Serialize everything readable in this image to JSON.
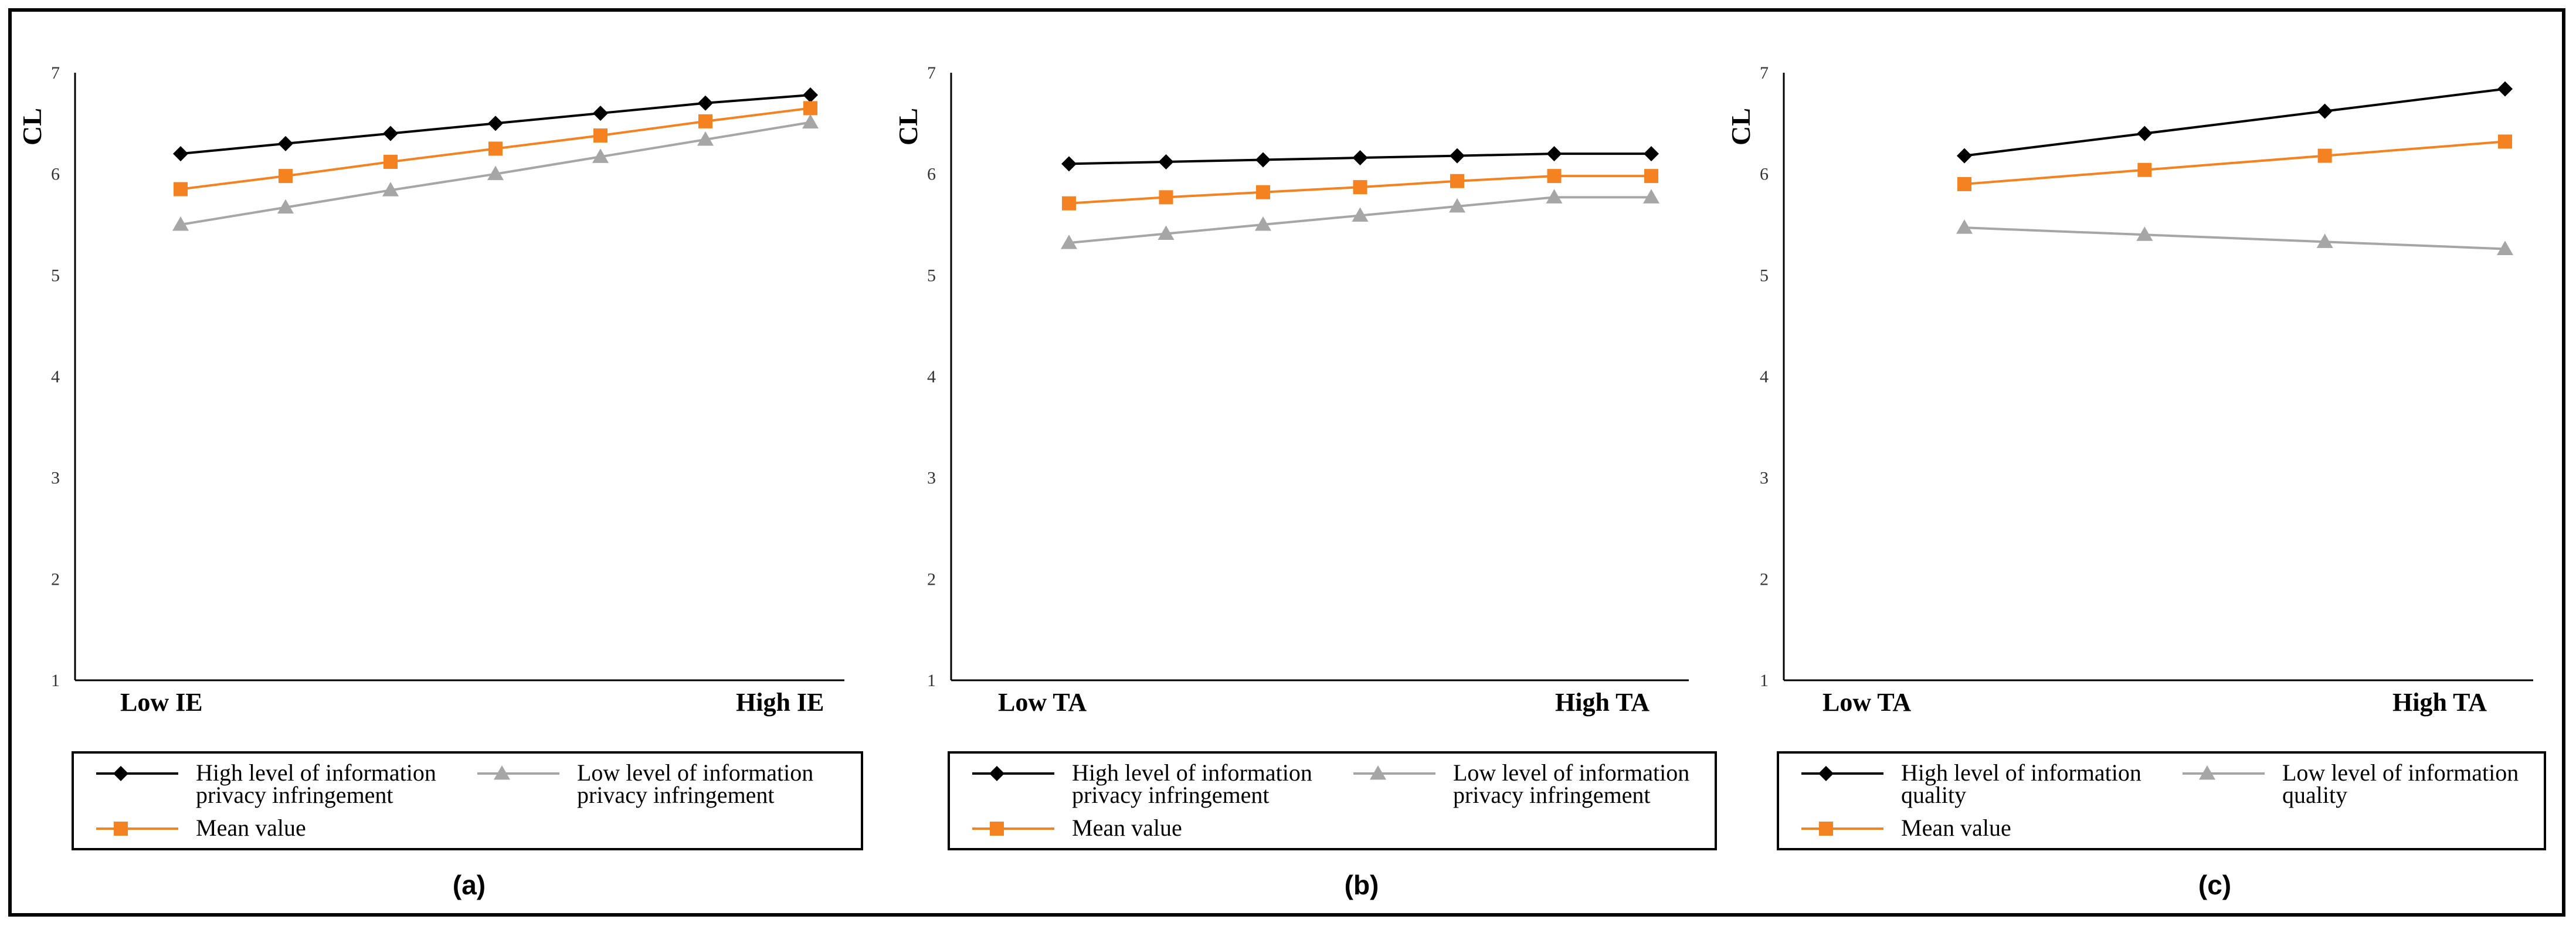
{
  "chart_data": [
    {
      "type": "line",
      "panel": "(a)",
      "ylabel": "CL",
      "ylim": [
        1,
        7
      ],
      "yticks": [
        "1",
        "2",
        "3",
        "4",
        "5",
        "6",
        "7"
      ],
      "x_low_label": "Low IE",
      "x_high_label": "High IE",
      "x": [
        1,
        2,
        3,
        4,
        5,
        6,
        7
      ],
      "series": [
        {
          "name": "High level of information privacy infringement",
          "legend_lines": [
            "High level of information",
            "privacy infringement"
          ],
          "color": "#000000",
          "marker": "diamond",
          "values": [
            6.2,
            6.3,
            6.4,
            6.5,
            6.6,
            6.7,
            6.78
          ]
        },
        {
          "name": "Low level of information privacy infringement",
          "legend_lines": [
            "Low level of information",
            "privacy infringement"
          ],
          "color": "#a6a6a6",
          "marker": "triangle",
          "values": [
            5.5,
            5.67,
            5.84,
            6.0,
            6.17,
            6.34,
            6.51
          ]
        },
        {
          "name": "Mean value",
          "legend_lines": [
            "Mean value"
          ],
          "color": "#f58220",
          "marker": "square",
          "values": [
            5.85,
            5.98,
            6.12,
            6.25,
            6.38,
            6.52,
            6.65
          ]
        }
      ]
    },
    {
      "type": "line",
      "panel": "(b)",
      "ylabel": "CL",
      "ylim": [
        1,
        7
      ],
      "yticks": [
        "1",
        "2",
        "3",
        "4",
        "5",
        "6",
        "7"
      ],
      "x_low_label": "Low  TA",
      "x_high_label": "High TA",
      "x": [
        1,
        2,
        3,
        4,
        5,
        6,
        7
      ],
      "series": [
        {
          "name": "High level of information privacy infringement",
          "legend_lines": [
            "High level of information",
            "privacy infringement"
          ],
          "color": "#000000",
          "marker": "diamond",
          "values": [
            6.1,
            6.12,
            6.14,
            6.16,
            6.18,
            6.2,
            6.2
          ]
        },
        {
          "name": "Low level of information privacy infringement",
          "legend_lines": [
            "Low level of information",
            "privacy infringement"
          ],
          "color": "#a6a6a6",
          "marker": "triangle",
          "values": [
            5.32,
            5.41,
            5.5,
            5.59,
            5.68,
            5.77,
            5.77
          ]
        },
        {
          "name": "Mean value",
          "legend_lines": [
            "Mean value"
          ],
          "color": "#f58220",
          "marker": "square",
          "values": [
            5.71,
            5.77,
            5.82,
            5.87,
            5.93,
            5.98,
            5.98
          ]
        }
      ]
    },
    {
      "type": "line",
      "panel": "(c)",
      "ylabel": "CL",
      "ylim": [
        1,
        7
      ],
      "yticks": [
        "1",
        "2",
        "3",
        "4",
        "5",
        "6",
        "7"
      ],
      "x_low_label": "Low  TA",
      "x_high_label": "High TA",
      "x": [
        1,
        2,
        3,
        4
      ],
      "series": [
        {
          "name": "High level of information quality",
          "legend_lines": [
            "High level of information",
            "quality"
          ],
          "color": "#000000",
          "marker": "diamond",
          "values": [
            6.18,
            6.4,
            6.62,
            6.84
          ]
        },
        {
          "name": "Low level of information quality",
          "legend_lines": [
            "Low level of information",
            "quality"
          ],
          "color": "#a6a6a6",
          "marker": "triangle",
          "values": [
            5.47,
            5.4,
            5.33,
            5.26
          ]
        },
        {
          "name": "Mean value",
          "legend_lines": [
            "Mean value"
          ],
          "color": "#f58220",
          "marker": "square",
          "values": [
            5.9,
            6.04,
            6.18,
            6.32
          ]
        }
      ]
    }
  ]
}
